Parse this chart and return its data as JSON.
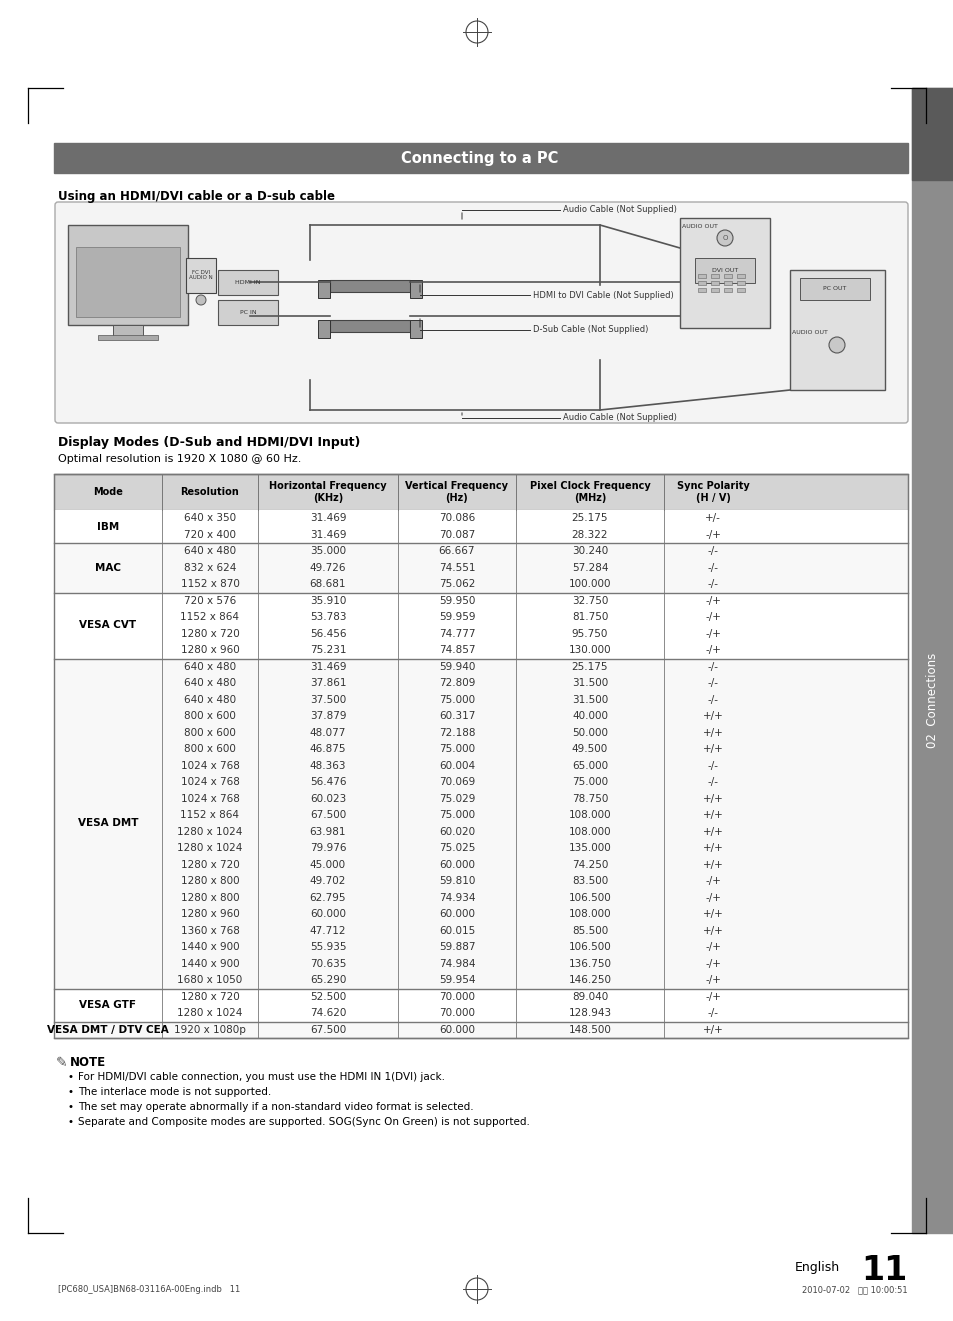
{
  "page_title": "Connecting to a PC",
  "section_subtitle": "Using an HDMI/DVI cable or a D-sub cable",
  "table_section_title": "Display Modes (D-Sub and HDMI/DVI Input)",
  "table_subtitle": "Optimal resolution is 1920 X 1080 @ 60 Hz.",
  "col_headers": [
    "Mode",
    "Resolution",
    "Horizontal Frequency\n(KHz)",
    "Vertical Frequency\n(Hz)",
    "Pixel Clock Frequency\n(MHz)",
    "Sync Polarity\n(H / V)"
  ],
  "table_data": [
    [
      "IBM",
      "640 x 350",
      "31.469",
      "70.086",
      "25.175",
      "+/-"
    ],
    [
      "IBM",
      "720 x 400",
      "31.469",
      "70.087",
      "28.322",
      "-/+"
    ],
    [
      "MAC",
      "640 x 480",
      "35.000",
      "66.667",
      "30.240",
      "-/-"
    ],
    [
      "MAC",
      "832 x 624",
      "49.726",
      "74.551",
      "57.284",
      "-/-"
    ],
    [
      "MAC",
      "1152 x 870",
      "68.681",
      "75.062",
      "100.000",
      "-/-"
    ],
    [
      "VESA CVT",
      "720 x 576",
      "35.910",
      "59.950",
      "32.750",
      "-/+"
    ],
    [
      "VESA CVT",
      "1152 x 864",
      "53.783",
      "59.959",
      "81.750",
      "-/+"
    ],
    [
      "VESA CVT",
      "1280 x 720",
      "56.456",
      "74.777",
      "95.750",
      "-/+"
    ],
    [
      "VESA CVT",
      "1280 x 960",
      "75.231",
      "74.857",
      "130.000",
      "-/+"
    ],
    [
      "VESA DMT",
      "640 x 480",
      "31.469",
      "59.940",
      "25.175",
      "-/-"
    ],
    [
      "VESA DMT",
      "640 x 480",
      "37.861",
      "72.809",
      "31.500",
      "-/-"
    ],
    [
      "VESA DMT",
      "640 x 480",
      "37.500",
      "75.000",
      "31.500",
      "-/-"
    ],
    [
      "VESA DMT",
      "800 x 600",
      "37.879",
      "60.317",
      "40.000",
      "+/+"
    ],
    [
      "VESA DMT",
      "800 x 600",
      "48.077",
      "72.188",
      "50.000",
      "+/+"
    ],
    [
      "VESA DMT",
      "800 x 600",
      "46.875",
      "75.000",
      "49.500",
      "+/+"
    ],
    [
      "VESA DMT",
      "1024 x 768",
      "48.363",
      "60.004",
      "65.000",
      "-/-"
    ],
    [
      "VESA DMT",
      "1024 x 768",
      "56.476",
      "70.069",
      "75.000",
      "-/-"
    ],
    [
      "VESA DMT",
      "1024 x 768",
      "60.023",
      "75.029",
      "78.750",
      "+/+"
    ],
    [
      "VESA DMT",
      "1152 x 864",
      "67.500",
      "75.000",
      "108.000",
      "+/+"
    ],
    [
      "VESA DMT",
      "1280 x 1024",
      "63.981",
      "60.020",
      "108.000",
      "+/+"
    ],
    [
      "VESA DMT",
      "1280 x 1024",
      "79.976",
      "75.025",
      "135.000",
      "+/+"
    ],
    [
      "VESA DMT",
      "1280 x 720",
      "45.000",
      "60.000",
      "74.250",
      "+/+"
    ],
    [
      "VESA DMT",
      "1280 x 800",
      "49.702",
      "59.810",
      "83.500",
      "-/+"
    ],
    [
      "VESA DMT",
      "1280 x 800",
      "62.795",
      "74.934",
      "106.500",
      "-/+"
    ],
    [
      "VESA DMT",
      "1280 x 960",
      "60.000",
      "60.000",
      "108.000",
      "+/+"
    ],
    [
      "VESA DMT",
      "1360 x 768",
      "47.712",
      "60.015",
      "85.500",
      "+/+"
    ],
    [
      "VESA DMT",
      "1440 x 900",
      "55.935",
      "59.887",
      "106.500",
      "-/+"
    ],
    [
      "VESA DMT",
      "1440 x 900",
      "70.635",
      "74.984",
      "136.750",
      "-/+"
    ],
    [
      "VESA DMT",
      "1680 x 1050",
      "65.290",
      "59.954",
      "146.250",
      "-/+"
    ],
    [
      "VESA GTF",
      "1280 x 720",
      "52.500",
      "70.000",
      "89.040",
      "-/+"
    ],
    [
      "VESA GTF",
      "1280 x 1024",
      "74.620",
      "70.000",
      "128.943",
      "-/-"
    ],
    [
      "VESA DMT / DTV CEA",
      "1920 x 1080p",
      "67.500",
      "60.000",
      "148.500",
      "+/+"
    ]
  ],
  "note_title": "NOTE",
  "notes": [
    "For HDMI/DVI cable connection, you must use the HDMI IN 1(DVI) jack.",
    "The interlace mode is not supported.",
    "The set may operate abnormally if a non-standard video format is selected.",
    "Separate and Composite modes are supported. SOG(Sync On Green) is not supported."
  ],
  "page_number": "11",
  "footer_left": "[PC680_USA]BN68-03116A-00Eng.indb   11",
  "footer_right": "2010-07-02   오전 10:00:51",
  "sidebar_text": "02  Connections",
  "header_bar_color": "#6d6d6d",
  "header_text_color": "#ffffff",
  "table_header_bg": "#d4d4d4",
  "table_border_color": "#777777",
  "bg_color": "#ffffff",
  "sidebar_color": "#8c8c8c",
  "sidebar_dark_color": "#5a5a5a"
}
